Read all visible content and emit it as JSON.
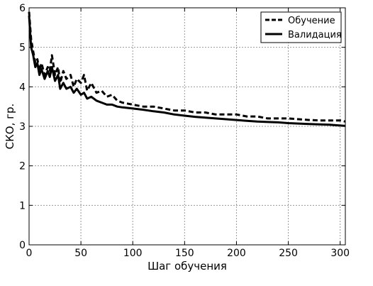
{
  "chart_data": {
    "type": "line",
    "xlabel": "Шаг обучения",
    "ylabel": "СКО, гр.",
    "xlim": [
      0,
      305
    ],
    "ylim": [
      0,
      6
    ],
    "xticks": [
      0,
      50,
      100,
      150,
      200,
      250,
      300
    ],
    "yticks": [
      0,
      1,
      2,
      3,
      4,
      5,
      6
    ],
    "grid": true,
    "legend_position": "top-right",
    "series": [
      {
        "name": "Обучение",
        "style": "dashed",
        "color": "#000000",
        "x": [
          0,
          2,
          4,
          6,
          8,
          10,
          12,
          15,
          18,
          20,
          22,
          25,
          28,
          30,
          33,
          36,
          40,
          43,
          46,
          50,
          53,
          56,
          60,
          65,
          70,
          75,
          80,
          85,
          90,
          100,
          110,
          120,
          130,
          140,
          150,
          160,
          170,
          180,
          190,
          200,
          210,
          220,
          230,
          240,
          250,
          260,
          270,
          280,
          290,
          300,
          305
        ],
        "y": [
          5.9,
          5.2,
          4.9,
          4.6,
          4.7,
          4.4,
          4.6,
          4.3,
          4.5,
          4.4,
          4.8,
          4.3,
          4.5,
          4.1,
          4.4,
          4.2,
          4.3,
          4.0,
          4.2,
          4.1,
          4.3,
          3.9,
          4.1,
          3.85,
          3.9,
          3.75,
          3.8,
          3.65,
          3.6,
          3.55,
          3.5,
          3.5,
          3.45,
          3.4,
          3.4,
          3.35,
          3.35,
          3.3,
          3.3,
          3.3,
          3.25,
          3.25,
          3.2,
          3.2,
          3.2,
          3.18,
          3.16,
          3.15,
          3.15,
          3.15,
          3.12
        ]
      },
      {
        "name": "Валидация",
        "style": "solid",
        "color": "#000000",
        "x": [
          0,
          2,
          4,
          6,
          8,
          10,
          12,
          15,
          18,
          20,
          22,
          25,
          28,
          30,
          33,
          36,
          40,
          43,
          46,
          50,
          53,
          56,
          60,
          65,
          70,
          75,
          80,
          85,
          90,
          100,
          110,
          120,
          130,
          140,
          150,
          160,
          170,
          180,
          190,
          200,
          210,
          220,
          230,
          240,
          250,
          260,
          270,
          280,
          290,
          300,
          305
        ],
        "y": [
          5.8,
          5.0,
          4.8,
          4.5,
          4.6,
          4.3,
          4.45,
          4.2,
          4.4,
          4.25,
          4.5,
          4.15,
          4.3,
          3.95,
          4.1,
          3.95,
          4.0,
          3.85,
          3.95,
          3.8,
          3.85,
          3.7,
          3.75,
          3.65,
          3.6,
          3.55,
          3.55,
          3.5,
          3.48,
          3.45,
          3.42,
          3.38,
          3.35,
          3.3,
          3.27,
          3.24,
          3.22,
          3.2,
          3.18,
          3.16,
          3.14,
          3.12,
          3.11,
          3.1,
          3.08,
          3.07,
          3.06,
          3.05,
          3.04,
          3.02,
          3.01
        ]
      }
    ]
  }
}
